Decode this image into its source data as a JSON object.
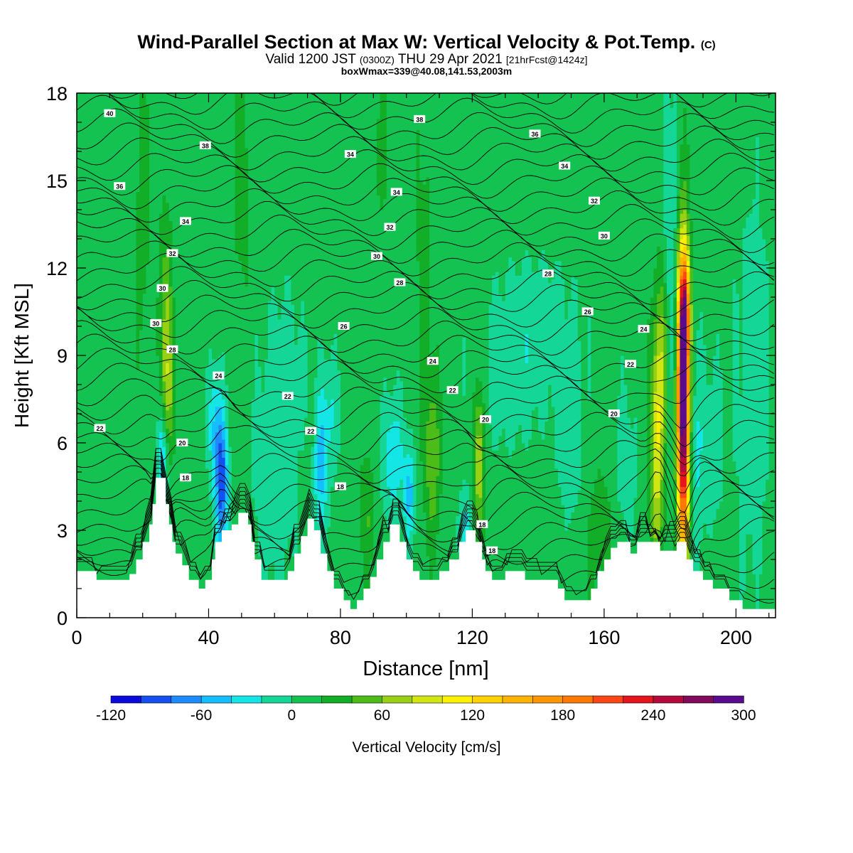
{
  "header": {
    "title": "Wind-Parallel Section at Max W: Vertical Velocity & Pot.Temp.",
    "title_mark": "(C)",
    "valid_prefix": "Valid 1200 JST",
    "valid_utc": "(0300Z)",
    "valid_date": "THU 29 Apr 2021",
    "forecast": "[21hrFcst@1424z]",
    "box_info": "boxWmax=339@40.08,141.53,2003m"
  },
  "chart_data": {
    "type": "heatmap",
    "xlabel": "Distance [nm]",
    "ylabel": "Height [Kft MSL]",
    "xlim": [
      0,
      212
    ],
    "ylim": [
      0,
      18
    ],
    "x_ticks": [
      0,
      40,
      80,
      120,
      160,
      200
    ],
    "y_ticks": [
      0,
      3,
      6,
      9,
      12,
      15,
      18
    ],
    "colorbar": {
      "label": "Vertical Velocity [cm/s]",
      "min": -120,
      "step": 20,
      "tick_values": [
        -120,
        -60,
        0,
        60,
        120,
        180,
        240,
        300
      ],
      "tick_labels": [
        "-120",
        "-60",
        "0",
        "60",
        "120",
        "180",
        "240",
        "300"
      ],
      "colors": [
        "#0a0adc",
        "#1450f0",
        "#1e8cff",
        "#14beff",
        "#14e6e6",
        "#14d696",
        "#14c252",
        "#12ae28",
        "#4cbc18",
        "#9ad014",
        "#d2e614",
        "#fff000",
        "#ffd200",
        "#ffb400",
        "#ff9600",
        "#ff7800",
        "#ff4614",
        "#e6141e",
        "#b40a3c",
        "#820a5a",
        "#5a0a8c"
      ]
    },
    "terrain": [
      [
        0,
        1.6
      ],
      [
        6,
        1.6
      ],
      [
        6,
        1.3
      ],
      [
        16,
        1.3
      ],
      [
        16,
        1.5
      ],
      [
        18,
        1.5
      ],
      [
        18,
        2.0
      ],
      [
        20,
        2.0
      ],
      [
        20,
        2.6
      ],
      [
        22,
        2.6
      ],
      [
        22,
        3.2
      ],
      [
        23,
        3.2
      ],
      [
        23,
        3.9
      ],
      [
        24,
        3.9
      ],
      [
        24,
        4.8
      ],
      [
        27,
        4.8
      ],
      [
        27,
        3.9
      ],
      [
        28,
        3.9
      ],
      [
        28,
        3.2
      ],
      [
        29,
        3.2
      ],
      [
        29,
        2.6
      ],
      [
        30,
        2.6
      ],
      [
        30,
        2.2
      ],
      [
        32,
        2.2
      ],
      [
        32,
        1.8
      ],
      [
        34,
        1.8
      ],
      [
        34,
        1.3
      ],
      [
        37,
        1.3
      ],
      [
        37,
        1.0
      ],
      [
        39,
        1.0
      ],
      [
        39,
        1.3
      ],
      [
        41,
        1.3
      ],
      [
        41,
        2.0
      ],
      [
        42,
        2.0
      ],
      [
        42,
        2.6
      ],
      [
        44,
        2.6
      ],
      [
        44,
        3.0
      ],
      [
        47,
        3.0
      ],
      [
        47,
        3.2
      ],
      [
        49,
        3.2
      ],
      [
        49,
        3.6
      ],
      [
        52,
        3.6
      ],
      [
        52,
        3.2
      ],
      [
        53,
        3.2
      ],
      [
        53,
        2.6
      ],
      [
        54,
        2.6
      ],
      [
        54,
        2.0
      ],
      [
        56,
        2.0
      ],
      [
        56,
        1.3
      ],
      [
        64,
        1.3
      ],
      [
        64,
        1.6
      ],
      [
        66,
        1.6
      ],
      [
        66,
        2.2
      ],
      [
        68,
        2.2
      ],
      [
        68,
        2.8
      ],
      [
        70,
        2.8
      ],
      [
        70,
        3.4
      ],
      [
        72,
        3.4
      ],
      [
        72,
        3.0
      ],
      [
        74,
        3.0
      ],
      [
        74,
        2.2
      ],
      [
        76,
        2.2
      ],
      [
        76,
        1.6
      ],
      [
        78,
        1.6
      ],
      [
        78,
        1.0
      ],
      [
        81,
        1.0
      ],
      [
        81,
        0.6
      ],
      [
        83,
        0.6
      ],
      [
        83,
        0.3
      ],
      [
        85,
        0.3
      ],
      [
        85,
        0.6
      ],
      [
        87,
        0.6
      ],
      [
        87,
        1.0
      ],
      [
        89,
        1.0
      ],
      [
        89,
        1.4
      ],
      [
        91,
        1.4
      ],
      [
        91,
        2.0
      ],
      [
        93,
        2.0
      ],
      [
        93,
        2.6
      ],
      [
        95,
        2.6
      ],
      [
        95,
        3.2
      ],
      [
        98,
        3.2
      ],
      [
        98,
        2.6
      ],
      [
        100,
        2.6
      ],
      [
        100,
        2.0
      ],
      [
        102,
        2.0
      ],
      [
        102,
        1.6
      ],
      [
        104,
        1.6
      ],
      [
        104,
        1.3
      ],
      [
        110,
        1.3
      ],
      [
        110,
        1.6
      ],
      [
        113,
        1.6
      ],
      [
        113,
        2.0
      ],
      [
        116,
        2.0
      ],
      [
        116,
        2.6
      ],
      [
        118,
        2.6
      ],
      [
        118,
        3.0
      ],
      [
        121,
        3.0
      ],
      [
        121,
        2.6
      ],
      [
        123,
        2.6
      ],
      [
        123,
        2.0
      ],
      [
        124,
        2.0
      ],
      [
        124,
        1.6
      ],
      [
        126,
        1.6
      ],
      [
        126,
        1.3
      ],
      [
        130,
        1.3
      ],
      [
        130,
        1.6
      ],
      [
        136,
        1.6
      ],
      [
        136,
        1.3
      ],
      [
        146,
        1.3
      ],
      [
        146,
        1.0
      ],
      [
        148,
        1.0
      ],
      [
        148,
        0.6
      ],
      [
        156,
        0.6
      ],
      [
        156,
        1.0
      ],
      [
        158,
        1.0
      ],
      [
        158,
        1.6
      ],
      [
        160,
        1.6
      ],
      [
        160,
        2.0
      ],
      [
        162,
        2.0
      ],
      [
        162,
        2.4
      ],
      [
        164,
        2.4
      ],
      [
        164,
        2.6
      ],
      [
        168,
        2.6
      ],
      [
        168,
        2.2
      ],
      [
        170,
        2.2
      ],
      [
        170,
        2.6
      ],
      [
        177,
        2.6
      ],
      [
        177,
        2.3
      ],
      [
        182,
        2.3
      ],
      [
        182,
        2.6
      ],
      [
        185,
        2.6
      ],
      [
        185,
        2.0
      ],
      [
        187,
        2.0
      ],
      [
        187,
        1.6
      ],
      [
        190,
        1.6
      ],
      [
        190,
        1.3
      ],
      [
        193,
        1.3
      ],
      [
        193,
        1.0
      ],
      [
        198,
        1.0
      ],
      [
        198,
        0.6
      ],
      [
        202,
        0.6
      ],
      [
        202,
        0.3
      ],
      [
        212,
        0.3
      ]
    ],
    "isentrope_labels": [
      {
        "x": 10,
        "y": 17.3,
        "text": "40"
      },
      {
        "x": 39,
        "y": 16.2,
        "text": "38"
      },
      {
        "x": 83,
        "y": 15.9,
        "text": "34"
      },
      {
        "x": 104,
        "y": 17.1,
        "text": "38"
      },
      {
        "x": 139,
        "y": 16.6,
        "text": "36"
      },
      {
        "x": 148,
        "y": 15.5,
        "text": "34"
      },
      {
        "x": 13,
        "y": 14.8,
        "text": "36"
      },
      {
        "x": 97,
        "y": 14.6,
        "text": "34"
      },
      {
        "x": 157,
        "y": 14.3,
        "text": "32"
      },
      {
        "x": 33,
        "y": 13.6,
        "text": "34"
      },
      {
        "x": 95,
        "y": 13.4,
        "text": "32"
      },
      {
        "x": 160,
        "y": 13.1,
        "text": "30"
      },
      {
        "x": 29,
        "y": 12.5,
        "text": "32"
      },
      {
        "x": 91,
        "y": 12.4,
        "text": "30"
      },
      {
        "x": 143,
        "y": 11.8,
        "text": "28"
      },
      {
        "x": 26,
        "y": 11.3,
        "text": "30"
      },
      {
        "x": 98,
        "y": 11.5,
        "text": "28"
      },
      {
        "x": 155,
        "y": 10.5,
        "text": "26"
      },
      {
        "x": 24,
        "y": 10.1,
        "text": "30"
      },
      {
        "x": 81,
        "y": 10.0,
        "text": "26"
      },
      {
        "x": 172,
        "y": 9.9,
        "text": "24"
      },
      {
        "x": 29,
        "y": 9.2,
        "text": "28"
      },
      {
        "x": 108,
        "y": 8.8,
        "text": "24"
      },
      {
        "x": 168,
        "y": 8.7,
        "text": "22"
      },
      {
        "x": 43,
        "y": 8.3,
        "text": "24"
      },
      {
        "x": 114,
        "y": 7.8,
        "text": "22"
      },
      {
        "x": 64,
        "y": 7.6,
        "text": "22"
      },
      {
        "x": 7,
        "y": 6.5,
        "text": "22"
      },
      {
        "x": 163,
        "y": 7.0,
        "text": "20"
      },
      {
        "x": 71,
        "y": 6.4,
        "text": "22"
      },
      {
        "x": 124,
        "y": 6.8,
        "text": "20"
      },
      {
        "x": 32,
        "y": 6.0,
        "text": "20"
      },
      {
        "x": 33,
        "y": 4.8,
        "text": "18"
      },
      {
        "x": 80,
        "y": 4.5,
        "text": "18"
      },
      {
        "x": 123,
        "y": 3.2,
        "text": "18"
      },
      {
        "x": 126,
        "y": 2.3,
        "text": "18"
      }
    ]
  }
}
